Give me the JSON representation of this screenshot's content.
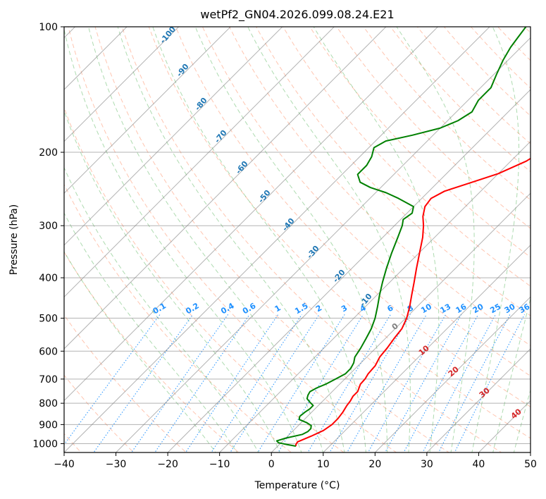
{
  "colors": {
    "temperature": "#ff0000",
    "dewpoint": "#008000",
    "grid": "#808080",
    "dry_adiabat": "#ff7f50",
    "moist_adiabat": "#4caf50",
    "mixing_ratio": "#1e90ff",
    "axes": "#000000",
    "dry_adiabat_label": "#d62728",
    "moist_adiabat_label": "#1f77b4",
    "mixing_ratio_label": "#1e90ff",
    "zero_label": "#808080"
  },
  "chart_data": {
    "type": "line",
    "title": "wetPf2_GN04.2026.099.08.24.E21",
    "xlabel": "Temperature (°C)",
    "ylabel": "Pressure (hPa)",
    "xlim": [
      -40,
      50
    ],
    "ylim": [
      1050,
      100
    ],
    "x_ticks": [
      -40,
      -30,
      -20,
      -10,
      0,
      10,
      20,
      30,
      40,
      50
    ],
    "y_ticks": [
      100,
      200,
      300,
      400,
      500,
      600,
      700,
      800,
      900,
      1000
    ],
    "skew": 1.0,
    "series": [
      {
        "name": "Temperature",
        "type": "temperature",
        "points": [
          [
            1014,
            3.5
          ],
          [
            1005,
            3.2
          ],
          [
            990,
            3.0
          ],
          [
            960,
            4.5
          ],
          [
            930,
            5.8
          ],
          [
            900,
            6.3
          ],
          [
            870,
            6.3
          ],
          [
            840,
            6.0
          ],
          [
            810,
            5.5
          ],
          [
            790,
            5.3
          ],
          [
            770,
            4.9
          ],
          [
            750,
            4.9
          ],
          [
            720,
            4.0
          ],
          [
            700,
            3.9
          ],
          [
            680,
            3.5
          ],
          [
            650,
            3.3
          ],
          [
            620,
            2.5
          ],
          [
            590,
            2.2
          ],
          [
            560,
            1.7
          ],
          [
            530,
            1.3
          ],
          [
            500,
            0.2
          ],
          [
            470,
            -1.4
          ],
          [
            440,
            -3.3
          ],
          [
            410,
            -5.3
          ],
          [
            380,
            -7.5
          ],
          [
            350,
            -9.8
          ],
          [
            320,
            -12.3
          ],
          [
            300,
            -14.4
          ],
          [
            285,
            -16.3
          ],
          [
            270,
            -17.8
          ],
          [
            258,
            -18.2
          ],
          [
            248,
            -17.0
          ],
          [
            238,
            -14.0
          ],
          [
            225,
            -10.0
          ],
          [
            210,
            -7.0
          ],
          [
            195,
            -5.5
          ],
          [
            180,
            -4.5
          ],
          [
            165,
            -3.5
          ],
          [
            150,
            -3.0
          ],
          [
            140,
            -3.0
          ],
          [
            130,
            -2.0
          ],
          [
            120,
            -1.0
          ],
          [
            112,
            -2.0
          ],
          [
            105,
            -3.2
          ],
          [
            100,
            -4.0
          ]
        ]
      },
      {
        "name": "Dewpoint",
        "type": "dewpoint",
        "points": [
          [
            1014,
            3.5
          ],
          [
            1005,
            1.5
          ],
          [
            995,
            -0.5
          ],
          [
            985,
            -1.2
          ],
          [
            970,
            0.0
          ],
          [
            950,
            2.5
          ],
          [
            935,
            3.0
          ],
          [
            920,
            3.0
          ],
          [
            905,
            2.5
          ],
          [
            890,
            1.0
          ],
          [
            875,
            -1.0
          ],
          [
            860,
            -1.5
          ],
          [
            840,
            -1.3
          ],
          [
            825,
            -1.0
          ],
          [
            810,
            -1.0
          ],
          [
            795,
            -2.3
          ],
          [
            780,
            -3.5
          ],
          [
            765,
            -4.0
          ],
          [
            750,
            -4.3
          ],
          [
            735,
            -3.7
          ],
          [
            720,
            -2.7
          ],
          [
            700,
            -1.8
          ],
          [
            680,
            -0.9
          ],
          [
            660,
            -0.9
          ],
          [
            640,
            -1.4
          ],
          [
            620,
            -2.3
          ],
          [
            590,
            -2.9
          ],
          [
            560,
            -3.7
          ],
          [
            530,
            -4.6
          ],
          [
            500,
            -5.9
          ],
          [
            470,
            -7.6
          ],
          [
            440,
            -9.5
          ],
          [
            410,
            -11.4
          ],
          [
            380,
            -13.3
          ],
          [
            350,
            -15.2
          ],
          [
            320,
            -17.1
          ],
          [
            300,
            -18.5
          ],
          [
            290,
            -19.5
          ],
          [
            280,
            -19.0
          ],
          [
            270,
            -20.0
          ],
          [
            258,
            -24.5
          ],
          [
            250,
            -28.0
          ],
          [
            243,
            -32.0
          ],
          [
            236,
            -35.0
          ],
          [
            226,
            -37.0
          ],
          [
            215,
            -37.0
          ],
          [
            205,
            -37.7
          ],
          [
            195,
            -39.0
          ],
          [
            188,
            -38.0
          ],
          [
            182,
            -34.0
          ],
          [
            175,
            -30.0
          ],
          [
            168,
            -28.0
          ],
          [
            160,
            -27.0
          ],
          [
            150,
            -28.0
          ],
          [
            140,
            -28.0
          ],
          [
            130,
            -29.5
          ],
          [
            120,
            -31.0
          ],
          [
            112,
            -32.0
          ],
          [
            106,
            -32.5
          ],
          [
            100,
            -33.0
          ]
        ]
      }
    ],
    "dry_adiabat_labels": [
      "0",
      "10",
      "20",
      "30",
      "40"
    ],
    "moist_adiabat_labels": [
      "-100",
      "-90",
      "-80",
      "-70",
      "-60",
      "-50",
      "-40",
      "-30",
      "-20",
      "-10"
    ],
    "mixing_ratio_labels": [
      "0.1",
      "0.2",
      "0.4",
      "0.6",
      "1",
      "1.5",
      "2",
      "3",
      "4",
      "6",
      "8",
      "10",
      "13",
      "16",
      "20",
      "25",
      "30",
      "36"
    ],
    "mixing_ratio_values": [
      0.1,
      0.2,
      0.4,
      0.6,
      1,
      1.5,
      2,
      3,
      4,
      6,
      8,
      10,
      13,
      16,
      20,
      25,
      30,
      36
    ],
    "dry_adiabat_thetas": [
      -50,
      -40,
      -30,
      -20,
      -10,
      0,
      10,
      20,
      30,
      40,
      50,
      60,
      70,
      80,
      90,
      100,
      110,
      120,
      130,
      140,
      150,
      160,
      170,
      180,
      190,
      200
    ],
    "moist_adiabat_starts": [
      -8,
      -4,
      0,
      4,
      8,
      12,
      16,
      20,
      24,
      28,
      32,
      36,
      40,
      44,
      48
    ]
  }
}
